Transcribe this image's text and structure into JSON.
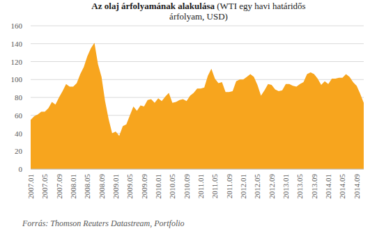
{
  "chart_data": {
    "type": "area",
    "title": "Az olaj árfolyamának alakulása",
    "subtitle": "(WTI egy havi határidős árfolyam, USD)",
    "source": "Forrás: Thomson Reuters Datastream, Portfolio",
    "color": "#f7a51e",
    "grid": true,
    "ylim": [
      0,
      160
    ],
    "yticks": [
      0,
      20,
      40,
      60,
      80,
      100,
      120,
      140,
      160
    ],
    "categories": [
      "2007.01",
      null,
      null,
      null,
      "2007.05",
      null,
      null,
      null,
      "2007.09",
      null,
      null,
      null,
      "2008.01",
      null,
      null,
      null,
      "2008.05",
      null,
      null,
      null,
      "2008.09",
      null,
      null,
      null,
      "2009.01",
      null,
      null,
      null,
      "2009.05",
      null,
      null,
      null,
      "2009.09",
      null,
      null,
      null,
      "2010.01",
      null,
      null,
      null,
      "2010.05",
      null,
      null,
      null,
      "2010.09",
      null,
      null,
      null,
      "2011.01",
      null,
      null,
      null,
      "2011.05",
      null,
      null,
      null,
      "2011.09",
      null,
      null,
      null,
      "2012.01",
      null,
      null,
      null,
      "2012.05",
      null,
      null,
      null,
      "2012.09",
      null,
      null,
      null,
      "2013.01",
      null,
      null,
      null,
      "2013.05",
      null,
      null,
      null,
      "2013.09",
      null,
      null,
      null,
      "2014.01",
      null,
      null,
      null,
      "2014.05",
      null,
      null,
      null,
      "2014.09",
      null,
      null
    ],
    "values": [
      55,
      59,
      61,
      64,
      64,
      68,
      75,
      72,
      80,
      87,
      95,
      92,
      92,
      96,
      106,
      114,
      126,
      135,
      141,
      117,
      103,
      76,
      56,
      40,
      42,
      37,
      48,
      50,
      60,
      70,
      65,
      71,
      70,
      77,
      78,
      74,
      79,
      76,
      81,
      85,
      74,
      75,
      77,
      78,
      76,
      82,
      85,
      90,
      90,
      91,
      104,
      112,
      101,
      96,
      97,
      86,
      86,
      87,
      98,
      100,
      100,
      103,
      106,
      103,
      94,
      82,
      88,
      95,
      94,
      89,
      87,
      88,
      95,
      95,
      93,
      92,
      95,
      97,
      106,
      108,
      106,
      101,
      94,
      98,
      95,
      101,
      101,
      102,
      102,
      106,
      103,
      97,
      93,
      84,
      74
    ]
  }
}
